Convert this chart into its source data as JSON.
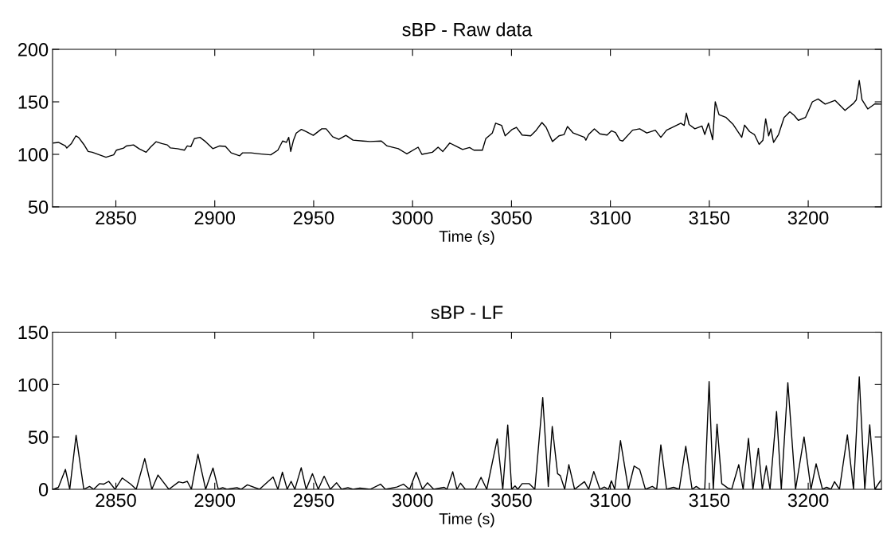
{
  "chart_data": [
    {
      "type": "line",
      "title": "sBP - Raw data",
      "xlabel": "Time (s)",
      "xlim": [
        2818,
        3237
      ],
      "xticks": [
        2850,
        2900,
        2950,
        3000,
        3050,
        3100,
        3150,
        3200
      ],
      "ylim": [
        50,
        200
      ],
      "yticks": [
        50,
        100,
        150,
        200
      ],
      "grid": false,
      "marker": "none",
      "line_style": "solid",
      "series": [
        {
          "color": "#000000",
          "x": [
            2818.5,
            2821,
            2824.5,
            2825.2,
            2827.4,
            2829.8,
            2831.2,
            2833.8,
            2836,
            2838.1,
            2841.7,
            2845,
            2848.9,
            2850.3,
            2853.9,
            2855.3,
            2858.9,
            2861.7,
            2865.3,
            2867.5,
            2870.3,
            2873.2,
            2876,
            2877.5,
            2881.1,
            2884.7,
            2886.1,
            2887.9,
            2889.7,
            2892.5,
            2895.4,
            2899,
            2902.5,
            2905.4,
            2908.3,
            2912.6,
            2914,
            2918.3,
            2922.6,
            2928.3,
            2931.9,
            2934.3,
            2936.2,
            2937.4,
            2938.4,
            2939.8,
            2941.2,
            2943.8,
            2946.2,
            2949.8,
            2954.1,
            2956.3,
            2959.6,
            2962.7,
            2966.3,
            2969.9,
            2974.9,
            2978.5,
            2984.2,
            2987.1,
            2992.8,
            2997.1,
            3002.8,
            3004.7,
            3010,
            3012.9,
            3015.3,
            3018.8,
            3021.7,
            3025.3,
            3028.8,
            3031,
            3035.3,
            3037,
            3040.3,
            3042,
            3045,
            3046.8,
            3050.4,
            3052.5,
            3055.4,
            3059.7,
            3062.5,
            3065.4,
            3067.5,
            3070.7,
            3074,
            3076.6,
            3078.3,
            3081.2,
            3086.9,
            3087.6,
            3089,
            3091.9,
            3094.7,
            3098.3,
            3100.5,
            3102.6,
            3104.8,
            3106.2,
            3111.2,
            3114.8,
            3118.4,
            3122.7,
            3125.5,
            3128.4,
            3131.3,
            3135.6,
            3137.3,
            3138.4,
            3139.8,
            3142.7,
            3146.3,
            3147.7,
            3149.6,
            3151.7,
            3153,
            3154.9,
            3158.5,
            3162.1,
            3166.4,
            3167.8,
            3170.4,
            3172.8,
            3175.2,
            3177.1,
            3178.5,
            3180,
            3181.1,
            3182.5,
            3185,
            3187.8,
            3190.7,
            3192.8,
            3195,
            3198.6,
            3202.1,
            3205,
            3208.6,
            3213.6,
            3218.6,
            3222.9,
            3224.3,
            3225.8,
            3227.2,
            3230.1,
            3233.7,
            3236.8
          ],
          "values": [
            110.8,
            111.4,
            108,
            106,
            110,
            117.6,
            116,
            109.5,
            102.7,
            102,
            99.5,
            97.3,
            99.5,
            104,
            106,
            108,
            109,
            105.4,
            102,
            106.8,
            112,
            110.3,
            109,
            106.2,
            105.4,
            104,
            108,
            107.3,
            115,
            116.2,
            112,
            105.4,
            108,
            107.6,
            101.4,
            98.6,
            101.4,
            101.4,
            100.5,
            99.5,
            104,
            112.7,
            111.4,
            116.2,
            102.7,
            113.5,
            120.3,
            123.8,
            121.6,
            118.1,
            124.3,
            124.3,
            116.8,
            114.3,
            118.1,
            113.5,
            112.7,
            112.2,
            112.7,
            108,
            105.4,
            100.5,
            106.8,
            100,
            102,
            106.8,
            102.7,
            110.8,
            108,
            104.6,
            106.5,
            104,
            104,
            114.9,
            120.3,
            129.7,
            127.6,
            117.6,
            123.8,
            125.7,
            118.4,
            117.6,
            123,
            130.3,
            125.7,
            112.2,
            117.6,
            118.9,
            126.5,
            120.3,
            116.2,
            113.5,
            118.9,
            124.3,
            119.5,
            118.4,
            122.4,
            120.8,
            113.5,
            112.7,
            123,
            124.3,
            120.3,
            123,
            116.2,
            123,
            125.7,
            129.7,
            127.6,
            139.2,
            128.4,
            124.3,
            127,
            118.9,
            129.7,
            114,
            150,
            137.8,
            135.1,
            128.4,
            116.2,
            127.8,
            121.6,
            118.9,
            109.5,
            113.5,
            133.8,
            117.6,
            124.3,
            111.4,
            118.9,
            135.1,
            140.5,
            137.3,
            132.4,
            135.1,
            150,
            152.7,
            147.8,
            151.4,
            141.9,
            148.6,
            151.9,
            170.3,
            151.9,
            143.2,
            148.1,
            147.8
          ]
        }
      ]
    },
    {
      "type": "line",
      "title": "sBP - LF",
      "xlabel": "Time (s)",
      "xlim": [
        2818,
        3237
      ],
      "xticks": [
        2850,
        2900,
        2950,
        3000,
        3050,
        3100,
        3150,
        3200
      ],
      "ylim": [
        0,
        150
      ],
      "yticks": [
        0,
        50,
        100,
        150
      ],
      "grid": false,
      "marker": "none",
      "line_style": "solid",
      "series": [
        {
          "color": "#000000",
          "x": [
            2818.5,
            2821,
            2824.5,
            2826.7,
            2829.9,
            2833.8,
            2836.7,
            2838.8,
            2841.7,
            2843.8,
            2846.4,
            2849.6,
            2853.2,
            2857.5,
            2860.3,
            2864.6,
            2868.2,
            2871.3,
            2876.8,
            2881.8,
            2883.9,
            2886.1,
            2888.2,
            2891.5,
            2895.4,
            2899.1,
            2901.8,
            2904,
            2906.1,
            2911.2,
            2913.3,
            2916.5,
            2922.6,
            2929.5,
            2931.9,
            2934.2,
            2936.6,
            2938.6,
            2940.5,
            2943.7,
            2946.2,
            2949.4,
            2952.3,
            2955.3,
            2958.4,
            2961.6,
            2964.1,
            2967.3,
            2969.9,
            2973.4,
            2978.5,
            2983.8,
            2986.3,
            2992.1,
            2995.4,
            2998.5,
            3001.8,
            3005,
            3007.5,
            3010.7,
            3012.8,
            3016,
            3017.4,
            3020.3,
            3022.4,
            3024.2,
            3026.7,
            3031.7,
            3034.6,
            3037.5,
            3042.8,
            3045.6,
            3048.1,
            3050.1,
            3051.8,
            3053.2,
            3055.4,
            3059,
            3061.8,
            3065.8,
            3068.6,
            3070.6,
            3073.3,
            3074.7,
            3076.9,
            3079,
            3081.9,
            3086.9,
            3089,
            3091.6,
            3094.7,
            3096.9,
            3099,
            3100.5,
            3102.2,
            3105.1,
            3109.1,
            3112,
            3114.8,
            3117.7,
            3121.2,
            3123.4,
            3125.5,
            3128.4,
            3131.9,
            3134.8,
            3138.1,
            3141.3,
            3143.4,
            3145.6,
            3147.7,
            3149.9,
            3152,
            3153.9,
            3156.3,
            3159.2,
            3161.3,
            3164.9,
            3167.1,
            3169.8,
            3172.1,
            3174.8,
            3176.8,
            3178.8,
            3180.7,
            3184,
            3186.4,
            3189.7,
            3193.6,
            3197.9,
            3201.4,
            3204,
            3207.2,
            3209.3,
            3211.5,
            3213.3,
            3215.8,
            3219.8,
            3222.9,
            3225.8,
            3228.6,
            3231.1,
            3233.7,
            3236.5
          ],
          "values": [
            0,
            2,
            19,
            0,
            51.5,
            0,
            2.7,
            0,
            5.4,
            4.9,
            7.6,
            0,
            10.8,
            4.9,
            0,
            29.3,
            0,
            13.6,
            0,
            7.1,
            6.2,
            7.6,
            0,
            33.4,
            0,
            20.3,
            0,
            1.6,
            0,
            1.6,
            0,
            4.3,
            0,
            11.7,
            0,
            16.3,
            0,
            7.6,
            0,
            20.6,
            0,
            14.9,
            0,
            12.5,
            0,
            6.2,
            0,
            1.6,
            0,
            1.1,
            0,
            4.9,
            0,
            2.2,
            4.9,
            0,
            16.3,
            0,
            6.2,
            0,
            0.8,
            1.9,
            0,
            16.8,
            0,
            5.9,
            0,
            0,
            11.4,
            0,
            48.1,
            0,
            61.4,
            0,
            3.2,
            0,
            5.4,
            5.4,
            0,
            87.6,
            2.7,
            60,
            14.9,
            13,
            0,
            23.5,
            0,
            7.3,
            0,
            17,
            0,
            2.2,
            0,
            8.1,
            0,
            46.5,
            0,
            22.2,
            18.9,
            0,
            2.7,
            0,
            42.4,
            0,
            1.9,
            0,
            41.1,
            0,
            2.7,
            0,
            0,
            102.7,
            0,
            62.2,
            5.4,
            1.4,
            0,
            23.5,
            0,
            48.6,
            0,
            39.2,
            0,
            22.4,
            0,
            74.3,
            0,
            101.9,
            0,
            50,
            0,
            24.3,
            0,
            1.9,
            0,
            7.3,
            0,
            51.9,
            0,
            107.3,
            0,
            61.6,
            0,
            8.1
          ]
        }
      ]
    }
  ]
}
